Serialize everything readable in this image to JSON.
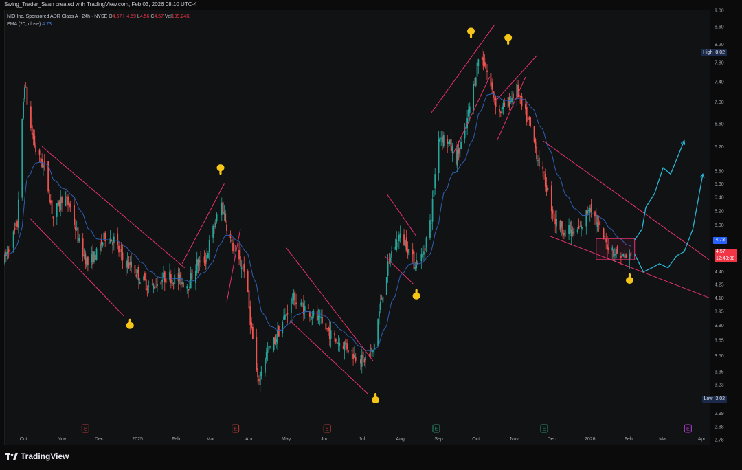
{
  "header": {
    "text": "Swing_Trader_Saan created with TradingView.com, Feb 03, 2026 08:10 UTC-4"
  },
  "legend": {
    "symbol": "NIO Inc. Sponsored ADR Class A · 24h · NYSE",
    "o_label": "O",
    "o_value": "4.57",
    "h_label": "H",
    "h_value": "4.59",
    "l_label": "L",
    "l_value": "4.56",
    "c_label": "C",
    "c_value": "4.57",
    "vol_label": "Vol",
    "vol_value": "199.24K",
    "ema_label": "EMA (20, close)",
    "ema_value": "4.73"
  },
  "tags": {
    "high_label": "High",
    "high_value": "8.02",
    "low_label": "Low",
    "low_value": "3.02",
    "ema_value": "4.73",
    "price_value": "4.57",
    "countdown": "12:49:08"
  },
  "brand": {
    "name": "TradingView"
  },
  "colors": {
    "up": "#26a69a",
    "down": "#ef5350",
    "ema": "#2f5fb3",
    "trend": "#e8336e",
    "projection": "#29b6d6",
    "hand": "#f5c518",
    "earnings_red": "#b53a3a",
    "earnings_green": "#2a8c6a",
    "earnings_purple": "#b43ed4"
  },
  "chart_data": {
    "type": "candlestick",
    "title": "NIO Inc. Sponsored ADR Class A · 24h · NYSE",
    "scale": "log",
    "ylim": [
      2.78,
      9.0
    ],
    "xlim": [
      "2024-09-16",
      "2026-04-07"
    ],
    "y_ticks": [
      "9.00",
      "8.60",
      "8.20",
      "7.80",
      "7.40",
      "7.00",
      "6.60",
      "6.20",
      "5.80",
      "5.60",
      "5.40",
      "5.20",
      "5.00",
      "4.80",
      "4.60",
      "4.40",
      "4.25",
      "4.10",
      "3.95",
      "3.80",
      "3.65",
      "3.50",
      "3.35",
      "3.23",
      "3.11",
      "2.99",
      "2.88",
      "2.78"
    ],
    "x_ticks": [
      {
        "label": "Oct",
        "date": "2024-10-01"
      },
      {
        "label": "Nov",
        "date": "2024-11-01"
      },
      {
        "label": "Dec",
        "date": "2024-12-01"
      },
      {
        "label": "2025",
        "date": "2025-01-01"
      },
      {
        "label": "Feb",
        "date": "2025-02-01"
      },
      {
        "label": "Mar",
        "date": "2025-03-01"
      },
      {
        "label": "Apr",
        "date": "2025-04-01"
      },
      {
        "label": "May",
        "date": "2025-05-01"
      },
      {
        "label": "Jun",
        "date": "2025-06-01"
      },
      {
        "label": "Jul",
        "date": "2025-07-01"
      },
      {
        "label": "Aug",
        "date": "2025-08-01"
      },
      {
        "label": "Sep",
        "date": "2025-09-01"
      },
      {
        "label": "Oct",
        "date": "2025-10-01"
      },
      {
        "label": "Nov",
        "date": "2025-11-01"
      },
      {
        "label": "Dec",
        "date": "2025-12-01"
      },
      {
        "label": "2026",
        "date": "2026-01-01"
      },
      {
        "label": "Feb",
        "date": "2026-02-01"
      },
      {
        "label": "Mar",
        "date": "2026-03-01"
      },
      {
        "label": "Apr",
        "date": "2026-04-01"
      }
    ],
    "price_path": [
      [
        "2024-09-16",
        4.55
      ],
      [
        "2024-09-26",
        5.0
      ],
      [
        "2024-10-02",
        7.4
      ],
      [
        "2024-10-06",
        6.6
      ],
      [
        "2024-10-12",
        6.05
      ],
      [
        "2024-10-18",
        5.85
      ],
      [
        "2024-10-25",
        5.1
      ],
      [
        "2024-11-01",
        5.4
      ],
      [
        "2024-11-08",
        5.25
      ],
      [
        "2024-11-15",
        4.75
      ],
      [
        "2024-11-22",
        4.5
      ],
      [
        "2024-11-29",
        4.62
      ],
      [
        "2024-12-06",
        4.85
      ],
      [
        "2024-12-13",
        4.8
      ],
      [
        "2024-12-20",
        4.55
      ],
      [
        "2024-12-28",
        4.45
      ],
      [
        "2025-01-05",
        4.3
      ],
      [
        "2025-01-12",
        4.2
      ],
      [
        "2025-01-19",
        4.3
      ],
      [
        "2025-01-26",
        4.35
      ],
      [
        "2025-02-04",
        4.3
      ],
      [
        "2025-02-11",
        4.25
      ],
      [
        "2025-02-18",
        4.5
      ],
      [
        "2025-02-25",
        4.55
      ],
      [
        "2025-03-04",
        5.0
      ],
      [
        "2025-03-10",
        5.3
      ],
      [
        "2025-03-16",
        4.85
      ],
      [
        "2025-03-22",
        4.55
      ],
      [
        "2025-03-28",
        4.45
      ],
      [
        "2025-04-03",
        3.75
      ],
      [
        "2025-04-08",
        3.25
      ],
      [
        "2025-04-14",
        3.5
      ],
      [
        "2025-04-22",
        3.65
      ],
      [
        "2025-04-30",
        3.9
      ],
      [
        "2025-05-06",
        4.1
      ],
      [
        "2025-05-13",
        4.0
      ],
      [
        "2025-05-20",
        3.95
      ],
      [
        "2025-05-27",
        3.85
      ],
      [
        "2025-06-03",
        3.75
      ],
      [
        "2025-06-10",
        3.65
      ],
      [
        "2025-06-18",
        3.6
      ],
      [
        "2025-06-25",
        3.5
      ],
      [
        "2025-07-02",
        3.45
      ],
      [
        "2025-07-10",
        3.55
      ],
      [
        "2025-07-17",
        4.1
      ],
      [
        "2025-07-24",
        4.6
      ],
      [
        "2025-07-31",
        4.85
      ],
      [
        "2025-08-06",
        4.75
      ],
      [
        "2025-08-12",
        4.5
      ],
      [
        "2025-08-19",
        4.6
      ],
      [
        "2025-08-26",
        5.1
      ],
      [
        "2025-09-01",
        6.4
      ],
      [
        "2025-09-08",
        6.3
      ],
      [
        "2025-09-15",
        6.0
      ],
      [
        "2025-09-22",
        6.4
      ],
      [
        "2025-09-29",
        7.3
      ],
      [
        "2025-10-03",
        7.9
      ],
      [
        "2025-10-08",
        7.8
      ],
      [
        "2025-10-14",
        7.2
      ],
      [
        "2025-10-20",
        6.8
      ],
      [
        "2025-10-27",
        7.0
      ],
      [
        "2025-11-03",
        7.25
      ],
      [
        "2025-11-07",
        6.9
      ],
      [
        "2025-11-13",
        6.6
      ],
      [
        "2025-11-20",
        6.0
      ],
      [
        "2025-11-27",
        5.55
      ],
      [
        "2025-12-04",
        5.05
      ],
      [
        "2025-12-11",
        4.95
      ],
      [
        "2025-12-18",
        4.9
      ],
      [
        "2025-12-25",
        4.95
      ],
      [
        "2026-01-01",
        5.3
      ],
      [
        "2026-01-07",
        5.0
      ],
      [
        "2026-01-14",
        4.75
      ],
      [
        "2026-01-21",
        4.65
      ],
      [
        "2026-01-27",
        4.6
      ],
      [
        "2026-02-03",
        4.57
      ]
    ],
    "ema_label": "EMA (20, close)",
    "ema_last": 4.73,
    "high": 8.02,
    "low": 3.02,
    "last_price": 4.57,
    "trendlines": [
      {
        "from": [
          "2024-10-16",
          6.2
        ],
        "to": [
          "2025-02-08",
          4.45
        ]
      },
      {
        "from": [
          "2024-10-06",
          5.1
        ],
        "to": [
          "2024-12-21",
          3.9
        ]
      },
      {
        "from": [
          "2025-02-06",
          4.5
        ],
        "to": [
          "2025-03-12",
          5.6
        ]
      },
      {
        "from": [
          "2025-03-14",
          4.05
        ],
        "to": [
          "2025-03-25",
          4.95
        ]
      },
      {
        "from": [
          "2025-05-01",
          4.7
        ],
        "to": [
          "2025-07-10",
          3.45
        ]
      },
      {
        "from": [
          "2025-05-04",
          3.85
        ],
        "to": [
          "2025-07-06",
          3.15
        ]
      },
      {
        "from": [
          "2025-07-21",
          5.45
        ],
        "to": [
          "2025-08-14",
          4.85
        ]
      },
      {
        "from": [
          "2025-07-19",
          4.6
        ],
        "to": [
          "2025-08-12",
          4.25
        ]
      },
      {
        "from": [
          "2025-08-26",
          6.8
        ],
        "to": [
          "2025-10-16",
          8.65
        ]
      },
      {
        "from": [
          "2025-09-12",
          6.05
        ],
        "to": [
          "2025-10-12",
          7.5
        ]
      },
      {
        "from": [
          "2025-10-16",
          7.0
        ],
        "to": [
          "2025-11-19",
          7.95
        ]
      },
      {
        "from": [
          "2025-10-18",
          6.3
        ],
        "to": [
          "2025-11-10",
          7.5
        ]
      },
      {
        "from": [
          "2025-11-24",
          6.3
        ],
        "to": [
          "2026-04-07",
          4.55
        ]
      },
      {
        "from": [
          "2025-11-30",
          4.85
        ],
        "to": [
          "2026-04-07",
          4.1
        ]
      }
    ],
    "rectangle": {
      "from": [
        "2026-01-06",
        4.82
      ],
      "to": [
        "2026-02-06",
        4.55
      ]
    },
    "projections": [
      [
        [
          "2026-02-06",
          4.8
        ],
        [
          "2026-02-12",
          4.95
        ],
        [
          "2026-02-15",
          5.25
        ],
        [
          "2026-02-22",
          5.45
        ],
        [
          "2026-03-01",
          5.85
        ],
        [
          "2026-03-07",
          5.75
        ],
        [
          "2026-03-18",
          6.3
        ]
      ],
      [
        [
          "2026-02-06",
          4.62
        ],
        [
          "2026-02-13",
          4.4
        ],
        [
          "2026-02-20",
          4.45
        ],
        [
          "2026-02-26",
          4.5
        ],
        [
          "2026-03-05",
          4.45
        ],
        [
          "2026-03-12",
          4.6
        ],
        [
          "2026-03-18",
          4.65
        ],
        [
          "2026-03-25",
          4.95
        ],
        [
          "2026-04-02",
          5.75
        ]
      ]
    ],
    "hand_markers": [
      {
        "date": "2024-12-26",
        "price": 3.8,
        "pointing": "down"
      },
      {
        "date": "2025-03-09",
        "price": 5.85,
        "pointing": "up"
      },
      {
        "date": "2025-07-12",
        "price": 3.1,
        "pointing": "down"
      },
      {
        "date": "2025-08-14",
        "price": 4.12,
        "pointing": "down"
      },
      {
        "date": "2025-09-27",
        "price": 8.5,
        "pointing": "up"
      },
      {
        "date": "2025-10-27",
        "price": 8.35,
        "pointing": "up"
      },
      {
        "date": "2026-02-02",
        "price": 4.3,
        "pointing": "down"
      }
    ],
    "events": [
      {
        "date": "2024-11-20",
        "letter": "E",
        "kind": "earnings_red"
      },
      {
        "date": "2025-03-21",
        "letter": "E",
        "kind": "earnings_red"
      },
      {
        "date": "2025-06-03",
        "letter": "E",
        "kind": "earnings_red"
      },
      {
        "date": "2025-08-30",
        "letter": "E",
        "kind": "earnings_green"
      },
      {
        "date": "2025-11-25",
        "letter": "E",
        "kind": "earnings_green"
      },
      {
        "date": "2026-03-21",
        "letter": "E",
        "kind": "earnings_purple"
      }
    ]
  }
}
